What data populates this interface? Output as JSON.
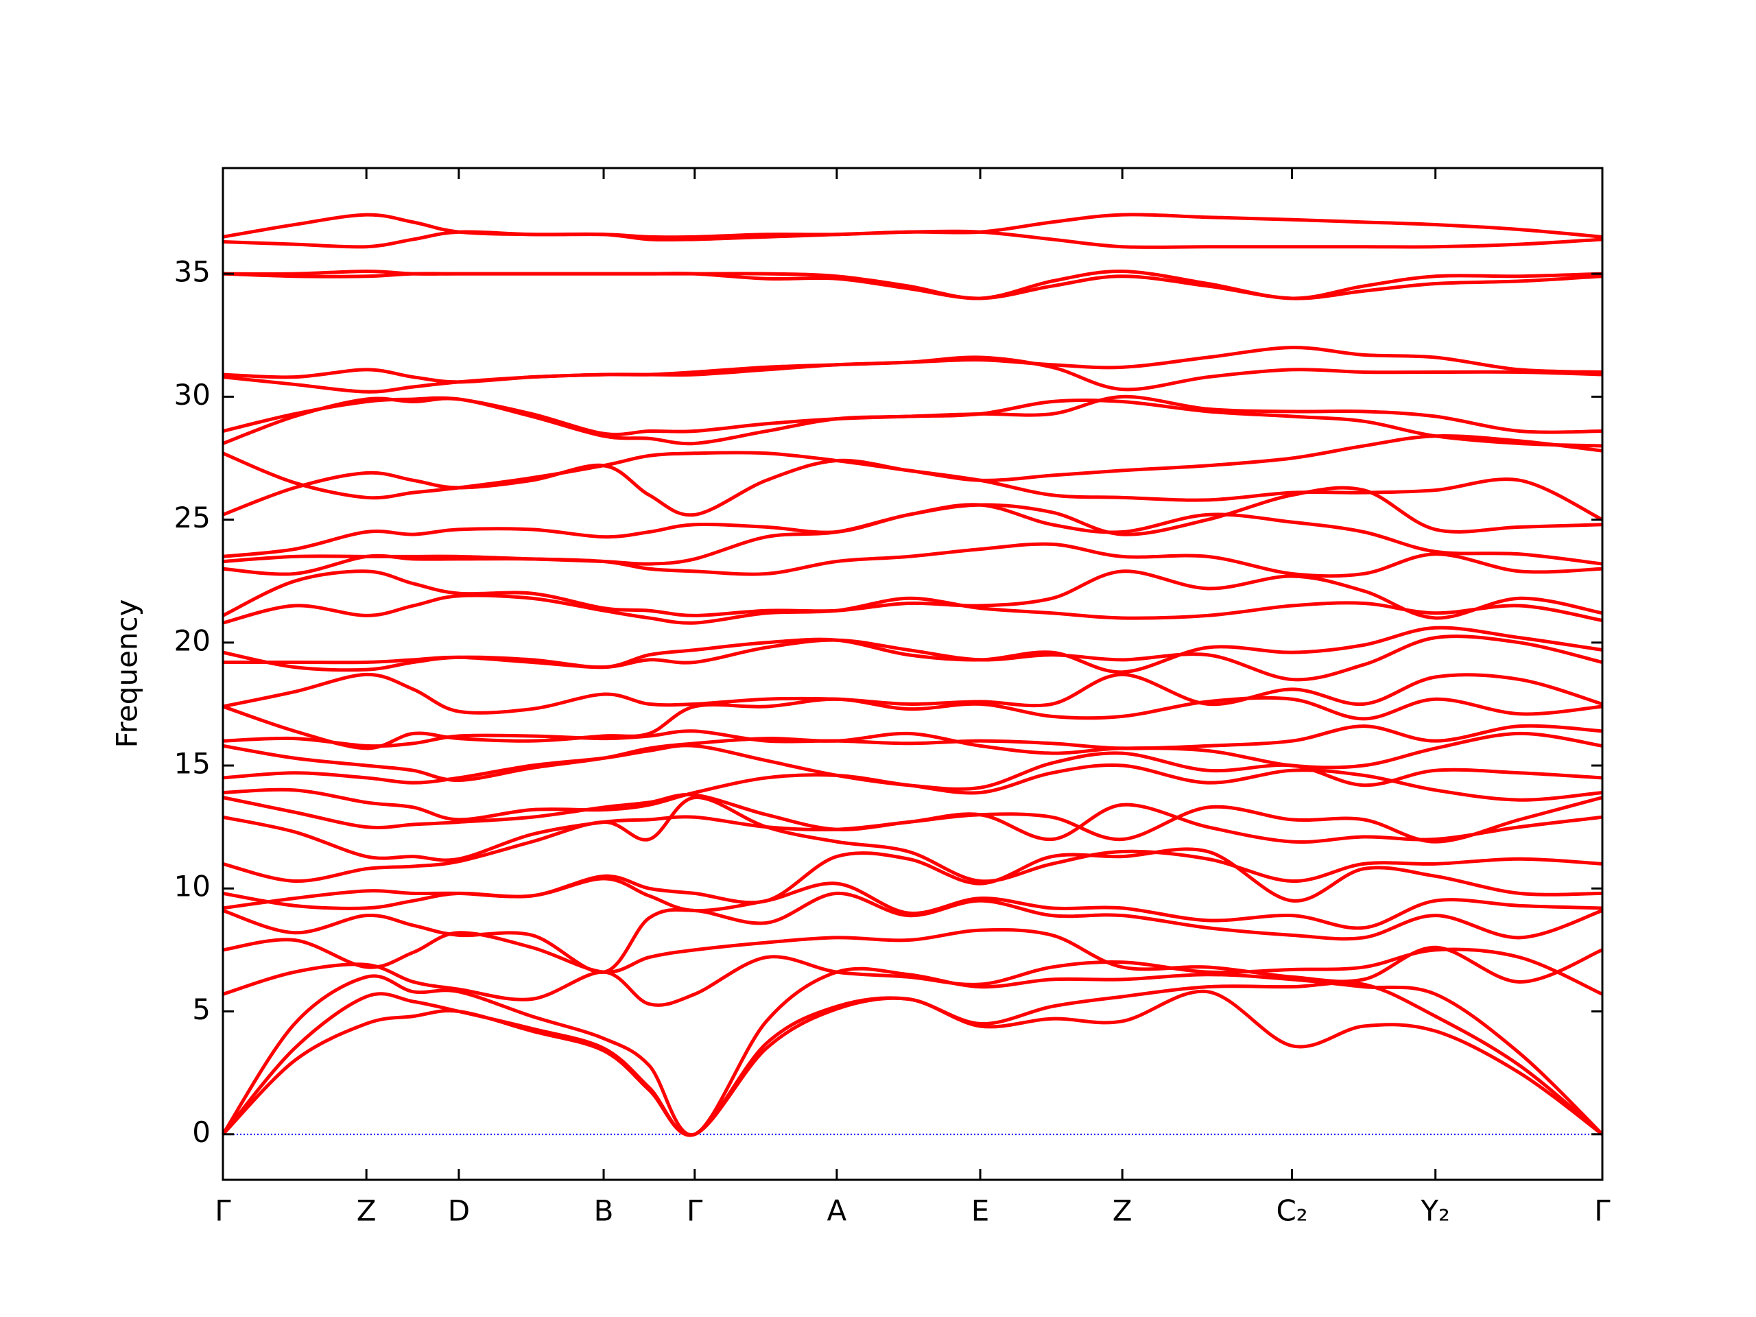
{
  "chart_data": {
    "type": "line",
    "ylabel": "Frequency",
    "x": [
      0,
      0.052,
      0.104,
      0.138,
      0.171,
      0.224,
      0.276,
      0.309,
      0.342,
      0.394,
      0.445,
      0.497,
      0.549,
      0.601,
      0.652,
      0.714,
      0.775,
      0.827,
      0.879,
      0.94,
      1
    ],
    "xlim": [
      0,
      1
    ],
    "xticks": [
      {
        "value": 0,
        "label": "Γ"
      },
      {
        "value": 0.104,
        "label": "Z"
      },
      {
        "value": 0.171,
        "label": "D"
      },
      {
        "value": 0.276,
        "label": "B"
      },
      {
        "value": 0.342,
        "label": "Γ"
      },
      {
        "value": 0.445,
        "label": "A"
      },
      {
        "value": 0.549,
        "label": "E"
      },
      {
        "value": 0.652,
        "label": "Z"
      },
      {
        "value": 0.775,
        "label": "C₂"
      },
      {
        "value": 0.879,
        "label": "Y₂"
      },
      {
        "value": 1,
        "label": "Γ"
      }
    ],
    "ylim": [
      -1.85,
      39.3
    ],
    "yticks": [
      0,
      5,
      10,
      15,
      20,
      25,
      30,
      35
    ],
    "hlines": [
      {
        "value": 0,
        "color": "#0000ff",
        "style": "dotted"
      }
    ],
    "series": [
      {
        "color": "#ff0000",
        "values": [
          0,
          3,
          4.5,
          4.8,
          5.0,
          4.2,
          3.4,
          1.8,
          0,
          3.5,
          5.1,
          5.5,
          4.4,
          4.7,
          4.6,
          5.8,
          3.6,
          4.4,
          4.2,
          2.5,
          0
        ]
      },
      {
        "color": "#ff0000",
        "values": [
          0,
          3.5,
          5.6,
          5.4,
          5.0,
          4.3,
          3.5,
          1.9,
          0,
          3.7,
          5.2,
          5.5,
          4.5,
          5.2,
          5.6,
          6.0,
          6.0,
          6.1,
          4.8,
          2.8,
          0
        ]
      },
      {
        "color": "#ff0000",
        "values": [
          0,
          4.5,
          6.4,
          5.8,
          5.8,
          4.8,
          3.9,
          2.8,
          0,
          4.6,
          6.6,
          6.5,
          6.0,
          6.3,
          6.3,
          6.5,
          6.3,
          6.0,
          5.7,
          3.3,
          0
        ]
      },
      {
        "color": "#ff0000",
        "values": [
          5.7,
          6.6,
          6.9,
          6.2,
          5.9,
          5.5,
          6.6,
          5.3,
          5.7,
          7.2,
          6.6,
          6.4,
          6.1,
          6.8,
          7.0,
          6.6,
          6.7,
          6.8,
          7.5,
          7.2,
          5.7
        ]
      },
      {
        "color": "#ff0000",
        "values": [
          7.5,
          7.9,
          6.8,
          7.4,
          8.2,
          7.6,
          6.6,
          7.2,
          7.5,
          7.8,
          8.0,
          7.9,
          8.3,
          8.1,
          6.8,
          6.8,
          6.4,
          6.3,
          7.6,
          6.2,
          7.5
        ]
      },
      {
        "color": "#ff0000",
        "values": [
          9.1,
          8.2,
          8.9,
          8.5,
          8.1,
          8.1,
          6.6,
          8.8,
          9.1,
          8.6,
          9.8,
          8.9,
          9.5,
          8.9,
          8.9,
          8.4,
          8.1,
          8.0,
          8.9,
          8.0,
          9.1
        ]
      },
      {
        "color": "#ff0000",
        "values": [
          9.2,
          9.6,
          9.9,
          9.8,
          9.8,
          9.7,
          10.4,
          9.7,
          9.1,
          9.5,
          10.2,
          9.0,
          9.6,
          9.2,
          9.2,
          8.7,
          8.9,
          8.4,
          9.5,
          9.3,
          9.2
        ]
      },
      {
        "color": "#ff0000",
        "values": [
          9.8,
          9.3,
          9.2,
          9.5,
          9.8,
          9.7,
          10.5,
          10.0,
          9.8,
          9.5,
          11.3,
          11.2,
          10.2,
          11.3,
          11.3,
          11.5,
          9.5,
          10.8,
          10.5,
          9.8,
          9.8
        ]
      },
      {
        "color": "#ff0000",
        "values": [
          11.0,
          10.3,
          10.8,
          10.9,
          11.1,
          11.9,
          12.7,
          12.0,
          13.7,
          12.5,
          11.9,
          11.5,
          10.3,
          11.0,
          11.5,
          11.2,
          10.3,
          11.0,
          11.0,
          11.2,
          11.0
        ]
      },
      {
        "color": "#ff0000",
        "values": [
          12.9,
          12.3,
          11.3,
          11.3,
          11.2,
          12.2,
          12.7,
          12.8,
          12.9,
          12.5,
          12.4,
          12.7,
          13.0,
          12.0,
          13.4,
          12.5,
          11.9,
          12.1,
          12.0,
          12.5,
          12.9
        ]
      },
      {
        "color": "#ff0000",
        "values": [
          13.7,
          13.1,
          12.5,
          12.6,
          12.7,
          12.9,
          13.3,
          13.5,
          13.8,
          13.0,
          12.4,
          12.7,
          13.0,
          12.9,
          12.0,
          13.3,
          12.8,
          12.8,
          11.9,
          12.8,
          13.7
        ]
      },
      {
        "color": "#ff0000",
        "values": [
          13.9,
          14.0,
          13.5,
          13.3,
          12.8,
          13.2,
          13.2,
          13.4,
          13.9,
          14.5,
          14.6,
          14.2,
          13.9,
          14.7,
          15.0,
          14.3,
          14.8,
          14.6,
          14.0,
          13.6,
          13.9
        ]
      },
      {
        "color": "#ff0000",
        "values": [
          14.5,
          14.7,
          14.5,
          14.3,
          14.5,
          15.0,
          15.3,
          15.6,
          15.8,
          15.2,
          14.6,
          14.2,
          14.1,
          15.1,
          15.5,
          14.8,
          15.0,
          14.2,
          14.8,
          14.7,
          14.5
        ]
      },
      {
        "color": "#ff0000",
        "values": [
          15.8,
          15.3,
          15.0,
          14.8,
          14.4,
          14.9,
          15.3,
          15.7,
          15.9,
          16.1,
          16.0,
          16.3,
          15.8,
          15.5,
          15.7,
          15.6,
          15.0,
          15.0,
          15.7,
          16.3,
          15.8
        ]
      },
      {
        "color": "#ff0000",
        "values": [
          16.0,
          16.1,
          15.8,
          15.9,
          16.2,
          16.2,
          16.1,
          16.2,
          16.4,
          16.0,
          16.0,
          15.9,
          16.0,
          15.9,
          15.7,
          15.8,
          16.0,
          16.6,
          16.0,
          16.6,
          16.4
        ]
      },
      {
        "color": "#ff0000",
        "values": [
          17.4,
          16.4,
          15.7,
          16.3,
          16.1,
          16.0,
          16.2,
          16.3,
          17.4,
          17.4,
          17.7,
          17.3,
          17.5,
          17.0,
          17.0,
          17.6,
          17.7,
          16.9,
          17.7,
          17.1,
          17.4
        ]
      },
      {
        "color": "#ff0000",
        "values": [
          17.4,
          18.0,
          18.7,
          18.1,
          17.2,
          17.3,
          17.9,
          17.5,
          17.5,
          17.7,
          17.7,
          17.5,
          17.6,
          17.5,
          18.7,
          17.5,
          18.1,
          17.5,
          18.6,
          18.5,
          17.5
        ]
      },
      {
        "color": "#ff0000",
        "values": [
          19.2,
          19.2,
          19.2,
          19.3,
          19.4,
          19.2,
          19.0,
          19.3,
          19.2,
          19.8,
          20.1,
          19.7,
          19.3,
          19.5,
          19.3,
          19.5,
          18.5,
          19.1,
          20.2,
          20.0,
          19.2
        ]
      },
      {
        "color": "#ff0000",
        "values": [
          19.6,
          19.0,
          18.9,
          19.2,
          19.4,
          19.3,
          19.0,
          19.5,
          19.7,
          20.0,
          20.1,
          19.5,
          19.3,
          19.6,
          18.8,
          19.8,
          19.6,
          19.9,
          20.6,
          20.2,
          19.7
        ]
      },
      {
        "color": "#ff0000",
        "values": [
          20.8,
          21.5,
          21.1,
          21.5,
          21.9,
          21.8,
          21.3,
          21.0,
          20.8,
          21.2,
          21.3,
          21.8,
          21.4,
          21.2,
          21.0,
          21.1,
          21.5,
          21.6,
          21.2,
          21.5,
          20.9
        ]
      },
      {
        "color": "#ff0000",
        "values": [
          21.1,
          22.5,
          22.9,
          22.4,
          22.0,
          22.0,
          21.4,
          21.3,
          21.1,
          21.3,
          21.3,
          21.6,
          21.5,
          21.8,
          22.9,
          22.2,
          22.7,
          22.1,
          21.0,
          21.8,
          21.2
        ]
      },
      {
        "color": "#ff0000",
        "values": [
          23.0,
          22.8,
          23.5,
          23.4,
          23.4,
          23.4,
          23.3,
          23.0,
          22.9,
          22.8,
          23.3,
          23.5,
          23.8,
          24.0,
          23.5,
          23.5,
          22.8,
          22.8,
          23.6,
          22.9,
          23.0
        ]
      },
      {
        "color": "#ff0000",
        "values": [
          23.3,
          23.5,
          23.5,
          23.5,
          23.5,
          23.4,
          23.3,
          23.2,
          23.4,
          24.3,
          24.5,
          25.2,
          25.6,
          24.8,
          24.5,
          25.2,
          24.9,
          24.5,
          23.7,
          23.6,
          23.2
        ]
      },
      {
        "color": "#ff0000",
        "values": [
          23.5,
          23.8,
          24.5,
          24.4,
          24.6,
          24.6,
          24.3,
          24.5,
          24.8,
          24.7,
          24.5,
          25.2,
          25.6,
          25.3,
          24.4,
          25.0,
          26.0,
          26.2,
          24.6,
          24.7,
          24.8
        ]
      },
      {
        "color": "#ff0000",
        "values": [
          25.2,
          26.3,
          26.9,
          26.6,
          26.3,
          26.6,
          27.2,
          26.0,
          25.2,
          26.6,
          27.4,
          27.0,
          26.6,
          26.0,
          25.9,
          25.8,
          26.1,
          26.1,
          26.2,
          26.6,
          25.0
        ]
      },
      {
        "color": "#ff0000",
        "values": [
          27.7,
          26.5,
          25.9,
          26.1,
          26.3,
          26.7,
          27.2,
          27.6,
          27.7,
          27.7,
          27.4,
          27.0,
          26.6,
          26.8,
          27.0,
          27.2,
          27.5,
          28.0,
          28.4,
          28.2,
          27.8
        ]
      },
      {
        "color": "#ff0000",
        "values": [
          28.1,
          29.2,
          29.9,
          29.8,
          29.9,
          29.2,
          28.4,
          28.3,
          28.1,
          28.6,
          29.1,
          29.2,
          29.3,
          29.8,
          29.8,
          29.4,
          29.2,
          29.0,
          28.4,
          28.1,
          28.0
        ]
      },
      {
        "color": "#ff0000",
        "values": [
          28.6,
          29.3,
          29.8,
          29.9,
          29.9,
          29.3,
          28.5,
          28.6,
          28.6,
          28.9,
          29.1,
          29.2,
          29.3,
          29.3,
          30.0,
          29.5,
          29.4,
          29.4,
          29.2,
          28.6,
          28.6
        ]
      },
      {
        "color": "#ff0000",
        "values": [
          30.8,
          30.5,
          30.2,
          30.4,
          30.6,
          30.8,
          30.9,
          30.9,
          30.9,
          31.1,
          31.3,
          31.4,
          31.6,
          31.2,
          30.3,
          30.8,
          31.1,
          31.0,
          31.0,
          31.0,
          30.9
        ]
      },
      {
        "color": "#ff0000",
        "values": [
          30.9,
          30.8,
          31.1,
          30.8,
          30.6,
          30.8,
          30.9,
          30.9,
          31.0,
          31.2,
          31.3,
          31.4,
          31.5,
          31.3,
          31.2,
          31.6,
          32.0,
          31.7,
          31.6,
          31.1,
          31.0
        ]
      },
      {
        "color": "#ff0000",
        "values": [
          35.0,
          34.9,
          34.9,
          35.0,
          35.0,
          35.0,
          35.0,
          35.0,
          35.0,
          34.8,
          34.8,
          34.4,
          34.0,
          34.5,
          34.9,
          34.5,
          34.0,
          34.3,
          34.6,
          34.7,
          34.9
        ]
      },
      {
        "color": "#ff0000",
        "values": [
          35.0,
          35.0,
          35.1,
          35.0,
          35.0,
          35.0,
          35.0,
          35.0,
          35.0,
          35.0,
          34.9,
          34.5,
          34.0,
          34.7,
          35.1,
          34.6,
          34.0,
          34.5,
          34.9,
          34.9,
          35.0
        ]
      },
      {
        "color": "#ff0000",
        "values": [
          36.3,
          36.2,
          36.1,
          36.4,
          36.7,
          36.6,
          36.6,
          36.4,
          36.4,
          36.5,
          36.6,
          36.7,
          36.7,
          36.4,
          36.1,
          36.1,
          36.1,
          36.1,
          36.1,
          36.2,
          36.4
        ]
      },
      {
        "color": "#ff0000",
        "values": [
          36.5,
          37.0,
          37.4,
          37.1,
          36.7,
          36.6,
          36.6,
          36.5,
          36.5,
          36.6,
          36.6,
          36.7,
          36.7,
          37.1,
          37.4,
          37.3,
          37.2,
          37.1,
          37.0,
          36.8,
          36.5
        ]
      }
    ]
  }
}
